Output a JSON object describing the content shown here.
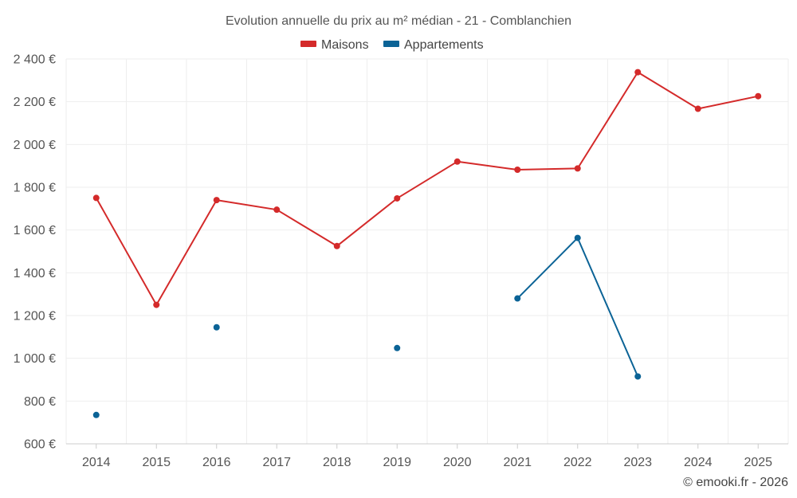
{
  "chart_data": {
    "type": "line",
    "title": "Evolution annuelle du prix au m² médian - 21 - Comblanchien",
    "categories": [
      "2014",
      "2015",
      "2016",
      "2017",
      "2018",
      "2019",
      "2020",
      "2021",
      "2022",
      "2023",
      "2024",
      "2025"
    ],
    "ylim": [
      600,
      2400
    ],
    "yticks": [
      600,
      800,
      1000,
      1200,
      1400,
      1600,
      1800,
      2000,
      2200,
      2400
    ],
    "ytick_labels": [
      "600 €",
      "800 €",
      "1 000 €",
      "1 200 €",
      "1 400 €",
      "1 600 €",
      "1 800 €",
      "2 000 €",
      "2 200 €",
      "2 400 €"
    ],
    "legend_position": "top-center",
    "grid": true,
    "series": [
      {
        "name": "Maisons",
        "color": "#d42a2a",
        "values": [
          1750,
          1250,
          1740,
          1695,
          1525,
          1748,
          1920,
          1882,
          1888,
          2338,
          2167,
          2226
        ]
      },
      {
        "name": "Appartements",
        "color": "#0b6396",
        "values": [
          735,
          null,
          1145,
          null,
          null,
          1048,
          null,
          1280,
          1563,
          915,
          null,
          null
        ]
      }
    ]
  },
  "credit": "© emooki.fr - 2026"
}
